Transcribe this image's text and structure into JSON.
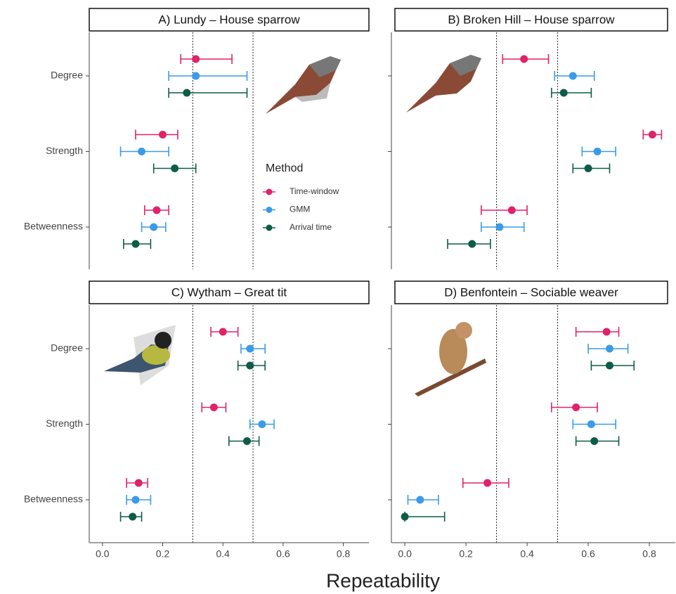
{
  "x_label": "Repeatability",
  "legend_title": "Method",
  "chart_data": [
    {
      "type": "dot-errorbar",
      "title": "A) Lundy – House sparrow",
      "categories": [
        "Degree",
        "Strength",
        "Betweenness"
      ],
      "xlim": [
        -0.044,
        0.885
      ],
      "reference_lines": [
        0.3,
        0.5
      ],
      "series": [
        {
          "name": "Time-window",
          "color": "#e0226a",
          "values": [
            0.31,
            0.2,
            0.18
          ],
          "lower": [
            0.26,
            0.11,
            0.14
          ],
          "upper": [
            0.43,
            0.25,
            0.22
          ]
        },
        {
          "name": "GMM",
          "color": "#3a9be8",
          "values": [
            0.31,
            0.13,
            0.17
          ],
          "lower": [
            0.22,
            0.06,
            0.13
          ],
          "upper": [
            0.48,
            0.22,
            0.21
          ]
        },
        {
          "name": "Arrival time",
          "color": "#0d5c47",
          "values": [
            0.28,
            0.24,
            0.11
          ],
          "lower": [
            0.22,
            0.17,
            0.07
          ],
          "upper": [
            0.48,
            0.31,
            0.16
          ]
        }
      ]
    },
    {
      "type": "dot-errorbar",
      "title": "B) Broken Hill – House sparrow",
      "xlim": [
        -0.044,
        0.885
      ],
      "reference_lines": [
        0.3,
        0.5
      ],
      "series": [
        {
          "color": "#e0226a",
          "values": [
            0.39,
            0.81,
            0.35
          ],
          "lower": [
            0.32,
            0.78,
            0.25
          ],
          "upper": [
            0.47,
            0.84,
            0.4
          ]
        },
        {
          "color": "#3a9be8",
          "values": [
            0.55,
            0.63,
            0.31
          ],
          "lower": [
            0.49,
            0.58,
            0.25
          ],
          "upper": [
            0.62,
            0.69,
            0.39
          ]
        },
        {
          "color": "#0d5c47",
          "values": [
            0.52,
            0.6,
            0.22
          ],
          "lower": [
            0.48,
            0.55,
            0.14
          ],
          "upper": [
            0.61,
            0.67,
            0.28
          ]
        }
      ]
    },
    {
      "type": "dot-errorbar",
      "title": "C) Wytham – Great tit",
      "categories": [
        "Degree",
        "Strength",
        "Betweenness"
      ],
      "xlim": [
        -0.044,
        0.885
      ],
      "reference_lines": [
        0.3,
        0.5
      ],
      "xticks": [
        {
          "value": 0,
          "label": "0.0"
        },
        0.2,
        0.4,
        0.6,
        0.8
      ],
      "series": [
        {
          "color": "#e0226a",
          "values": [
            0.4,
            0.37,
            0.12
          ],
          "lower": [
            0.36,
            0.33,
            0.08
          ],
          "upper": [
            0.45,
            0.41,
            0.15
          ]
        },
        {
          "color": "#3a9be8",
          "values": [
            0.49,
            0.53,
            0.11
          ],
          "lower": [
            0.46,
            0.49,
            0.08
          ],
          "upper": [
            0.54,
            0.57,
            0.16
          ]
        },
        {
          "color": "#0d5c47",
          "values": [
            0.49,
            0.48,
            0.1
          ],
          "lower": [
            0.45,
            0.42,
            0.06
          ],
          "upper": [
            0.54,
            0.52,
            0.13
          ]
        }
      ]
    },
    {
      "type": "dot-errorbar",
      "title": "D) Benfontein – Sociable weaver",
      "xlim": [
        -0.044,
        0.885
      ],
      "reference_lines": [
        0.3,
        0.5
      ],
      "xticks": [
        {
          "value": 0,
          "label": "0.0"
        },
        0.2,
        0.4,
        0.6,
        0.8
      ],
      "series": [
        {
          "color": "#e0226a",
          "values": [
            0.66,
            0.56,
            0.27
          ],
          "lower": [
            0.56,
            0.48,
            0.19
          ],
          "upper": [
            0.7,
            0.63,
            0.34
          ]
        },
        {
          "color": "#3a9be8",
          "values": [
            0.67,
            0.61,
            0.05
          ],
          "lower": [
            0.6,
            0.55,
            0.01
          ],
          "upper": [
            0.73,
            0.69,
            0.11
          ]
        },
        {
          "color": "#0d5c47",
          "values": [
            0.67,
            0.62,
            0
          ],
          "lower": [
            0.61,
            0.56,
            0
          ],
          "upper": [
            0.75,
            0.7,
            0.13
          ]
        }
      ]
    }
  ]
}
